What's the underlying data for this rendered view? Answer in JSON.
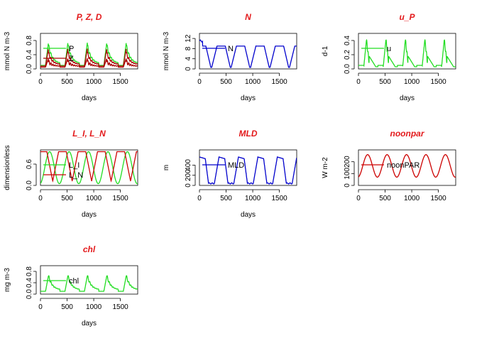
{
  "colors": {
    "title": "#e31a1c",
    "green": "#22dd22",
    "darkred": "#aa0000",
    "red": "#cc0000",
    "blue": "#0000cc"
  },
  "chart_data": [
    {
      "type": "line",
      "title": "P, Z, D",
      "xlabel": "days",
      "ylabel": "mmol N m-3",
      "xlim": [
        0,
        1825
      ],
      "xticks": [
        0,
        500,
        1000,
        1500
      ],
      "ylim": [
        0,
        1.0
      ],
      "yticks": [
        "0.0",
        "0.4",
        "0.8"
      ],
      "legend": [
        "P",
        "Z"
      ],
      "series": [
        {
          "color": "#22dd22",
          "kind": "bloom",
          "base": 0.1,
          "amp": 0.65,
          "decay": 0.8
        },
        {
          "color": "#aa0000",
          "kind": "bloom",
          "base": 0.08,
          "amp": 0.5,
          "decay": 0.65
        },
        {
          "color": "#aa0000",
          "kind": "bloom",
          "base": 0.05,
          "amp": 0.25,
          "decay": 0.5
        }
      ]
    },
    {
      "type": "line",
      "title": "N",
      "xlabel": "days",
      "ylabel": "mmol N m-3",
      "xlim": [
        0,
        1825
      ],
      "xticks": [
        0,
        500,
        1000,
        1500
      ],
      "ylim": [
        0,
        14
      ],
      "yticks": [
        "0",
        "4",
        "8",
        "12"
      ],
      "legend": [
        "N"
      ],
      "series": [
        {
          "color": "#0000cc",
          "kind": "nitrate"
        }
      ]
    },
    {
      "type": "line",
      "title": "u_P",
      "xlabel": "days",
      "ylabel": "d-1",
      "xlim": [
        0,
        1825
      ],
      "xticks": [
        0,
        500,
        1000,
        1500
      ],
      "ylim": [
        0,
        0.5
      ],
      "yticks": [
        "0.0",
        "0.2",
        "0.4"
      ],
      "legend": [
        "u"
      ],
      "series": [
        {
          "color": "#22dd22",
          "kind": "spike",
          "base": 0.03,
          "amp": 0.38
        }
      ]
    },
    {
      "type": "line",
      "title": "L_I, L_N",
      "xlabel": "days",
      "ylabel": "dimensionless",
      "xlim": [
        0,
        1825
      ],
      "xticks": [
        0,
        500,
        1000,
        1500
      ],
      "ylim": [
        0,
        1.0
      ],
      "yticks": [
        "0.0",
        "0.6"
      ],
      "legend": [
        "L_I",
        "L_N"
      ],
      "series": [
        {
          "color": "#22dd22",
          "kind": "lightlim"
        },
        {
          "color": "#cc0000",
          "kind": "nutlim"
        }
      ]
    },
    {
      "type": "line",
      "title": "MLD",
      "xlabel": "days",
      "ylabel": "m",
      "xlim": [
        0,
        1825
      ],
      "xticks": [
        0,
        500,
        1000,
        1500
      ],
      "ylim": [
        0,
        700
      ],
      "yticks": [
        "0",
        "200",
        "400"
      ],
      "legend": [
        "MLD"
      ],
      "series": [
        {
          "color": "#0000cc",
          "kind": "mld"
        }
      ]
    },
    {
      "type": "line",
      "title": "noonpar",
      "xlabel": "",
      "ylabel": "W m-2",
      "xlim": [
        0,
        1825
      ],
      "xticks": [
        0,
        500,
        1000,
        1500
      ],
      "ylim": [
        0,
        300
      ],
      "yticks": [
        "0",
        "100",
        "200"
      ],
      "legend": [
        "noonPAR"
      ],
      "series": [
        {
          "color": "#cc0000",
          "kind": "sine",
          "base": 165,
          "amp": 95
        }
      ]
    },
    {
      "type": "line",
      "title": "chl",
      "xlabel": "days",
      "ylabel": "mg  m-3",
      "xlim": [
        0,
        1825
      ],
      "xticks": [
        0,
        500,
        1000,
        1500
      ],
      "ylim": [
        0,
        1.0
      ],
      "yticks": [
        "0.0",
        "0.4",
        "0.8"
      ],
      "legend": [
        "chl"
      ],
      "series": [
        {
          "color": "#22dd22",
          "kind": "bloom",
          "base": 0.1,
          "amp": 0.55,
          "decay": 0.9
        }
      ]
    }
  ]
}
